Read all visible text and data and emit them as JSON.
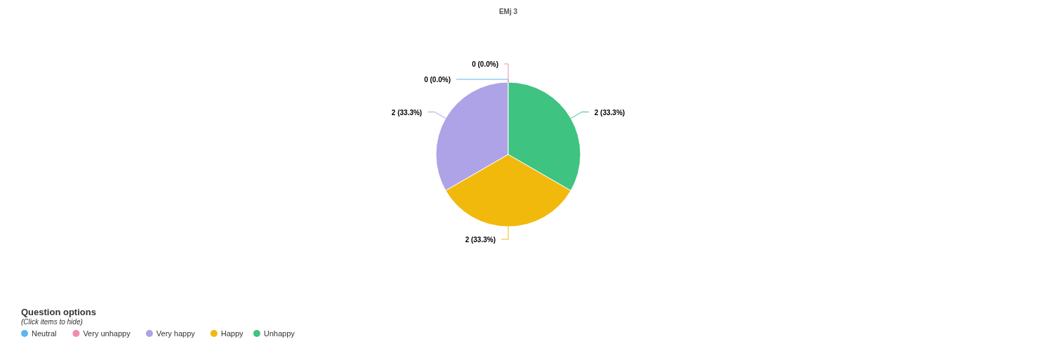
{
  "chart_data": {
    "type": "pie",
    "title": "EMj 3",
    "categories": [
      "Neutral",
      "Very unhappy",
      "Very happy",
      "Happy",
      "Unhappy"
    ],
    "values": [
      0,
      0,
      2,
      2,
      2
    ],
    "colors": [
      "#5fb4f2",
      "#f08cb0",
      "#ada3e6",
      "#f2b90d",
      "#3fc380"
    ],
    "value_labels": [
      "0 (0.0%)",
      "0 (0.0%)",
      "2 (33.3%)",
      "2 (33.3%)",
      "2 (33.3%)"
    ],
    "legend": "bottom left",
    "legend_title": "Question options",
    "annotations": [
      "(Click items to hide)"
    ]
  }
}
